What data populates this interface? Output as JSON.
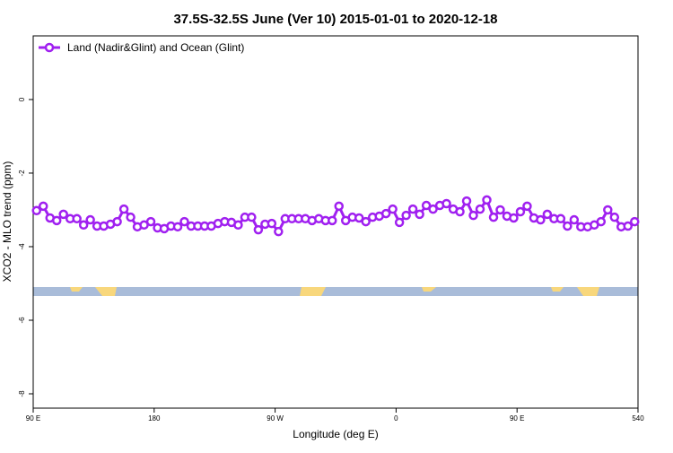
{
  "chart_data": {
    "type": "line",
    "title": "37.5S-32.5S June (Ver 10)   2015-01-01 to 2020-12-18",
    "x_label": "Longitude (deg E)",
    "y_label": "XCO2 - MLO trend (ppm)",
    "x": [
      92.5,
      97.5,
      102.5,
      107.5,
      112.5,
      117.5,
      122.5,
      127.5,
      132.5,
      137.5,
      142.5,
      147.5,
      152.5,
      157.5,
      162.5,
      167.5,
      172.5,
      177.5,
      182.5,
      187.5,
      192.5,
      197.5,
      202.5,
      207.5,
      212.5,
      217.5,
      222.5,
      227.5,
      232.5,
      237.5,
      242.5,
      247.5,
      252.5,
      257.5,
      262.5,
      267.5,
      272.5,
      277.5,
      282.5,
      287.5,
      292.5,
      297.5,
      302.5,
      307.5,
      312.5,
      317.5,
      322.5,
      327.5,
      332.5,
      337.5,
      342.5,
      347.5,
      352.5,
      357.5,
      362.5,
      367.5,
      372.5,
      377.5,
      382.5,
      387.5,
      392.5,
      397.5,
      402.5,
      407.5,
      412.5,
      417.5,
      422.5,
      427.5,
      432.5,
      437.5,
      442.5,
      447.5,
      452.5,
      457.5,
      462.5,
      467.5,
      472.5,
      477.5,
      482.5,
      487.5,
      492.5,
      497.5,
      502.5,
      507.5,
      512.5,
      517.5,
      522.5,
      527.5,
      532.5,
      537.5
    ],
    "series": [
      {
        "name": "Land (Nadir&Glint) and Ocean (Glint)",
        "color": "#a020f0",
        "values": [
          -3.02,
          -2.9,
          -3.22,
          -3.29,
          -3.12,
          -3.24,
          -3.24,
          -3.41,
          -3.27,
          -3.44,
          -3.44,
          -3.39,
          -3.32,
          -2.98,
          -3.2,
          -3.46,
          -3.41,
          -3.32,
          -3.49,
          -3.51,
          -3.44,
          -3.46,
          -3.32,
          -3.44,
          -3.44,
          -3.44,
          -3.44,
          -3.37,
          -3.32,
          -3.34,
          -3.41,
          -3.2,
          -3.2,
          -3.54,
          -3.39,
          -3.37,
          -3.59,
          -3.24,
          -3.24,
          -3.24,
          -3.24,
          -3.29,
          -3.24,
          -3.29,
          -3.29,
          -2.9,
          -3.29,
          -3.2,
          -3.22,
          -3.32,
          -3.2,
          -3.17,
          -3.1,
          -2.98,
          -3.34,
          -3.15,
          -2.98,
          -3.12,
          -2.88,
          -2.98,
          -2.88,
          -2.83,
          -2.98,
          -3.05,
          -2.76,
          -3.15,
          -2.98,
          -2.73,
          -3.2,
          -3.0,
          -3.17,
          -3.22,
          -3.05,
          -2.9,
          -3.22,
          -3.27,
          -3.12,
          -3.24,
          -3.24,
          -3.44,
          -3.27,
          -3.46,
          -3.46,
          -3.41,
          -3.32,
          -3.0,
          -3.2,
          -3.46,
          -3.44,
          -3.32
        ]
      }
    ],
    "xlim": [
      90,
      540
    ],
    "xticks": [
      {
        "value": 90,
        "label": "90 E"
      },
      180,
      {
        "value": 270,
        "label": "90 W"
      },
      {
        "value": 360,
        "label": "0"
      },
      {
        "value": 450,
        "label": "90 E"
      },
      540
    ],
    "ylim": [
      -8.39,
      1.73
    ],
    "yticks": [
      0,
      -2,
      -4,
      -6,
      -8
    ],
    "legend": "top-left"
  }
}
